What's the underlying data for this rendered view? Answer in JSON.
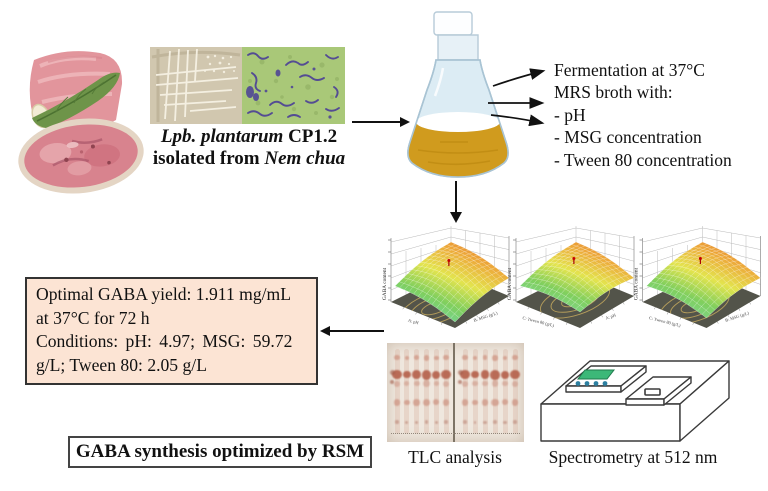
{
  "isolation": {
    "strain_italic": "Lpb. plantarum",
    "strain_code": " CP1.2",
    "source_prefix": "isolated from ",
    "source_italic": "Nem chua"
  },
  "fermentation": {
    "title": "Fermentation at 37°C",
    "subtitle": "MRS broth with:",
    "factors": [
      "- pH",
      "- MSG concentration",
      "- Tween 80 concentration"
    ]
  },
  "chart_data": [
    {
      "type": "surface",
      "zlabel": "GABA content",
      "xlabel_left": "A: pH",
      "xlabel_right": "B: MSG (g/L)",
      "surface_low_color": "#6fd8bf",
      "surface_high_color": "#e2772a",
      "floor_color": "#53544a",
      "contour_color": "#c6aa5e"
    },
    {
      "type": "surface",
      "zlabel": "GABA content",
      "xlabel_left": "C: Tween 80 (g/L)",
      "xlabel_right": "A: pH",
      "surface_low_color": "#7fd9a8",
      "surface_high_color": "#e2772a",
      "floor_color": "#53544a",
      "contour_color": "#c6aa5e"
    },
    {
      "type": "surface",
      "zlabel": "GABA content",
      "xlabel_left": "C: Tween 80 (g/L)",
      "xlabel_right": "B: MSG (g/L)",
      "surface_low_color": "#7fd9a8",
      "surface_high_color": "#e2772a",
      "floor_color": "#53544a",
      "contour_color": "#c6aa5e"
    }
  ],
  "results_box": {
    "line1": "Optimal GABA yield: 1.911 mg/mL",
    "line2": "at 37°C for 72 h",
    "line3": "Conditions: pH: 4.97; MSG: 59.72",
    "line4": "g/L; Tween 80: 2.05 g/L"
  },
  "conclusion": "GABA synthesis optimized by RSM",
  "method_labels": {
    "tlc": "TLC analysis",
    "spectrometry": "Spectrometry at 512 nm"
  },
  "colors": {
    "flask_glass": "#dcecf4",
    "flask_liquid": "#d09b1e",
    "results_box_bg": "#fce4d4",
    "screen_green": "#3cb878",
    "micro_bg": "#a9c878",
    "petri_bg": "#cabfa6"
  }
}
